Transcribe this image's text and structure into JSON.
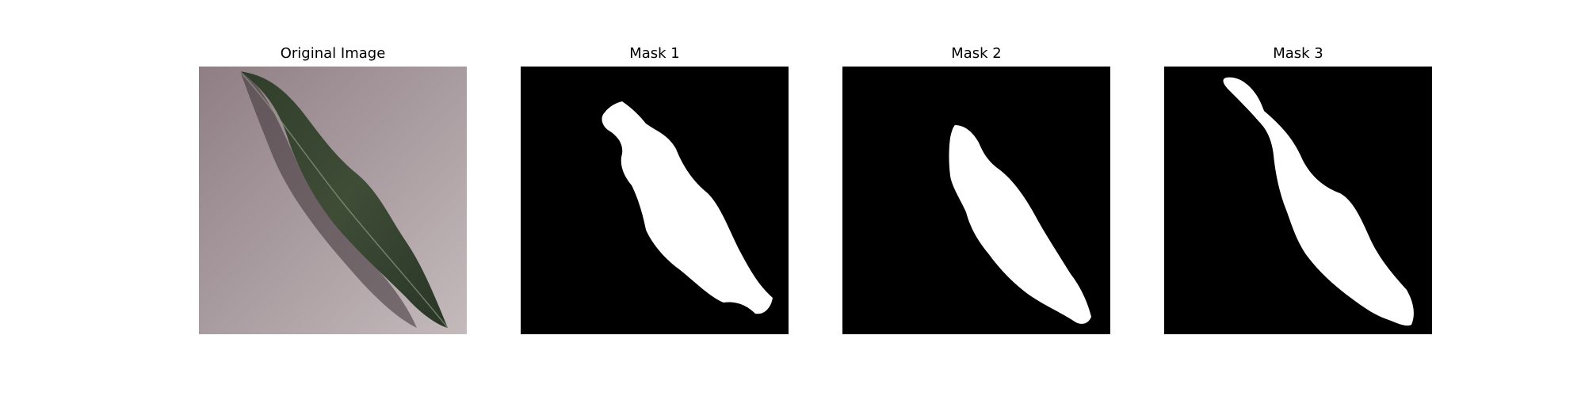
{
  "panels": [
    {
      "title": "Original Image",
      "content": "leaf-photo"
    },
    {
      "title": "Mask 1",
      "content": "binary-mask"
    },
    {
      "title": "Mask 2",
      "content": "binary-mask"
    },
    {
      "title": "Mask 3",
      "content": "binary-mask"
    }
  ],
  "colors": {
    "background": "#ffffff",
    "mask_foreground": "#ffffff",
    "mask_background": "#000000",
    "photo_surface": "#a89b9f",
    "leaf_green": "#3d4a35"
  }
}
